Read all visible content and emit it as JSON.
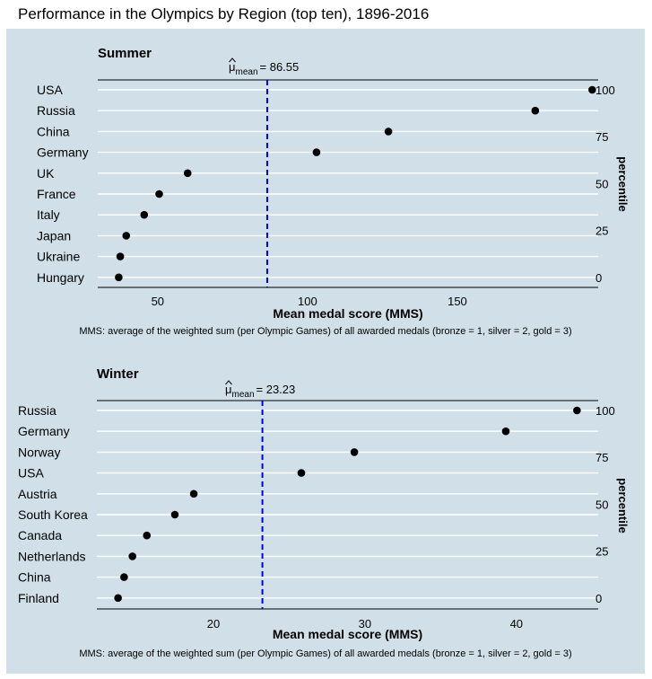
{
  "title": "Performance in the Olympics by Region (top ten), 1896-2016",
  "colors": {
    "background": "#d1e0e8",
    "grid": "#ffffff",
    "mean_line": "#0000dd",
    "point": "#000000",
    "text": "#000000"
  },
  "chart_data": [
    {
      "type": "scatter",
      "title": "Summer",
      "mean_label": "= 86.55",
      "mean_symbol_base": "μ",
      "mean_symbol_subscript": "mean",
      "mean_value": 86.55,
      "xlabel": "Mean medal score (MMS)",
      "ylabel_right": "percentile",
      "caption": "MMS: average of the weighted sum (per Olympic Games) of all awarded medals (bronze = 1, silver = 2, gold = 3)",
      "xlim": [
        30,
        197
      ],
      "xticks": [
        50,
        100,
        150
      ],
      "percentile_ticks": [
        0,
        25,
        50,
        75,
        100
      ],
      "grid": true,
      "categories": [
        "USA",
        "Russia",
        "China",
        "Germany",
        "UK",
        "France",
        "Italy",
        "Japan",
        "Ukraine",
        "Hungary"
      ],
      "values": [
        195.0,
        176.0,
        127.0,
        103.0,
        60.0,
        50.5,
        45.5,
        39.5,
        37.5,
        37.0
      ]
    },
    {
      "type": "scatter",
      "title": "Winter",
      "mean_label": "= 23.23",
      "mean_symbol_base": "μ",
      "mean_symbol_subscript": "mean",
      "mean_value": 23.23,
      "xlabel": "Mean medal score (MMS)",
      "ylabel_right": "percentile",
      "caption": "MMS: average of the weighted sum (per Olympic Games) of all awarded medals (bronze = 1, silver = 2, gold = 3)",
      "xlim": [
        12.3,
        45.4
      ],
      "xticks": [
        20,
        30,
        40
      ],
      "percentile_ticks": [
        0,
        25,
        50,
        75,
        100
      ],
      "grid": true,
      "categories": [
        "Russia",
        "Germany",
        "Norway",
        "USA",
        "Austria",
        "South Korea",
        "Canada",
        "Netherlands",
        "China",
        "Finland"
      ],
      "values": [
        44.0,
        39.3,
        29.3,
        25.8,
        18.7,
        17.45,
        15.6,
        14.65,
        14.1,
        13.7
      ]
    }
  ]
}
